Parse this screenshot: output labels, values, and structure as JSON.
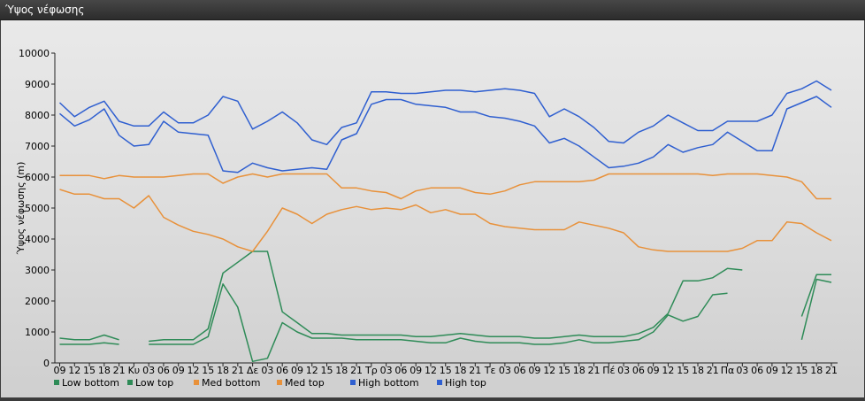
{
  "window": {
    "title": "Ύψος νέφωσης"
  },
  "chart_data": {
    "type": "line",
    "title": "",
    "xlabel": "",
    "ylabel": "Ύψος νέφωσης (m)",
    "ylim": [
      0,
      10000
    ],
    "yticks": [
      0,
      1000,
      2000,
      3000,
      4000,
      5000,
      6000,
      7000,
      8000,
      9000,
      10000
    ],
    "grid": false,
    "legend_position": "bottom-left",
    "categories": [
      "09",
      "12",
      "15",
      "18",
      "21",
      "Κυ",
      "03",
      "06",
      "09",
      "12",
      "15",
      "18",
      "21",
      "Δε",
      "03",
      "06",
      "09",
      "12",
      "15",
      "18",
      "21",
      "Τρ",
      "03",
      "06",
      "09",
      "12",
      "15",
      "18",
      "21",
      "Τε",
      "03",
      "06",
      "09",
      "12",
      "15",
      "18",
      "21",
      "Πέ",
      "03",
      "06",
      "09",
      "12",
      "15",
      "18",
      "21",
      "Πα",
      "03",
      "06",
      "09",
      "12",
      "15",
      "18",
      "21"
    ],
    "series": [
      {
        "name": "Low bottom",
        "color": "#2e8b57",
        "values": [
          600,
          600,
          600,
          650,
          600,
          null,
          600,
          600,
          600,
          600,
          850,
          2550,
          1800,
          50,
          150,
          1300,
          1000,
          800,
          800,
          800,
          750,
          750,
          750,
          750,
          700,
          650,
          650,
          800,
          700,
          650,
          650,
          650,
          600,
          600,
          650,
          750,
          650,
          650,
          700,
          750,
          1000,
          1550,
          1350,
          1500,
          2200,
          2250,
          null,
          null,
          null,
          null,
          750,
          2700,
          2600
        ]
      },
      {
        "name": "Low top",
        "color": "#2e8b57",
        "values": [
          800,
          750,
          750,
          900,
          750,
          null,
          700,
          750,
          750,
          750,
          1100,
          2900,
          3250,
          3600,
          3600,
          1650,
          1300,
          950,
          950,
          900,
          900,
          900,
          900,
          900,
          850,
          850,
          900,
          950,
          900,
          850,
          850,
          850,
          800,
          800,
          850,
          900,
          850,
          850,
          850,
          950,
          1150,
          1600,
          2650,
          2650,
          2750,
          3050,
          3000,
          null,
          null,
          null,
          1500,
          2850,
          2850
        ]
      },
      {
        "name": "Med bottom",
        "color": "#e8913a",
        "values": [
          5600,
          5450,
          5450,
          5300,
          5300,
          5000,
          5400,
          4700,
          4450,
          4250,
          4150,
          4000,
          3750,
          3600,
          4250,
          5000,
          4800,
          4500,
          4800,
          4950,
          5050,
          4950,
          5000,
          4950,
          5100,
          4850,
          4950,
          4800,
          4800,
          4500,
          4400,
          4350,
          4300,
          4300,
          4300,
          4550,
          4450,
          4350,
          4200,
          3750,
          3650,
          3600,
          3600,
          3600,
          3600,
          3600,
          3700,
          3950,
          3950,
          4550,
          4500,
          4200,
          3950
        ]
      },
      {
        "name": "Med top",
        "color": "#e8913a",
        "values": [
          6050,
          6050,
          6050,
          5950,
          6050,
          6000,
          6000,
          6000,
          6050,
          6100,
          6100,
          5800,
          6000,
          6100,
          6000,
          6100,
          6100,
          6100,
          6100,
          5650,
          5650,
          5550,
          5500,
          5300,
          5550,
          5650,
          5650,
          5650,
          5500,
          5450,
          5550,
          5750,
          5850,
          5850,
          5850,
          5850,
          5900,
          6100,
          6100,
          6100,
          6100,
          6100,
          6100,
          6100,
          6050,
          6100,
          6100,
          6100,
          6050,
          6000,
          5850,
          5300,
          5300
        ]
      },
      {
        "name": "High bottom",
        "color": "#2f5fd0",
        "values": [
          8050,
          7650,
          7850,
          8200,
          7350,
          7000,
          7050,
          7800,
          7450,
          7400,
          7350,
          6200,
          6150,
          6450,
          6300,
          6200,
          6250,
          6300,
          6250,
          7200,
          7400,
          8350,
          8500,
          8500,
          8350,
          8300,
          8250,
          8100,
          8100,
          7950,
          7900,
          7800,
          7650,
          7100,
          7250,
          7000,
          6650,
          6300,
          6350,
          6450,
          6650,
          7050,
          6800,
          6950,
          7050,
          7450,
          7150,
          6850,
          6850,
          8200,
          8400,
          8600,
          8250
        ]
      },
      {
        "name": "High top",
        "color": "#2f5fd0",
        "values": [
          8400,
          7950,
          8250,
          8450,
          7800,
          7650,
          7650,
          8100,
          7750,
          7750,
          8000,
          8600,
          8450,
          7550,
          7800,
          8100,
          7750,
          7200,
          7050,
          7600,
          7750,
          8750,
          8750,
          8700,
          8700,
          8750,
          8800,
          8800,
          8750,
          8800,
          8850,
          8800,
          8700,
          7950,
          8200,
          7950,
          7600,
          7150,
          7100,
          7450,
          7650,
          8000,
          7750,
          7500,
          7500,
          7800,
          7800,
          7800,
          8000,
          8700,
          8850,
          9100,
          8800
        ]
      }
    ]
  }
}
